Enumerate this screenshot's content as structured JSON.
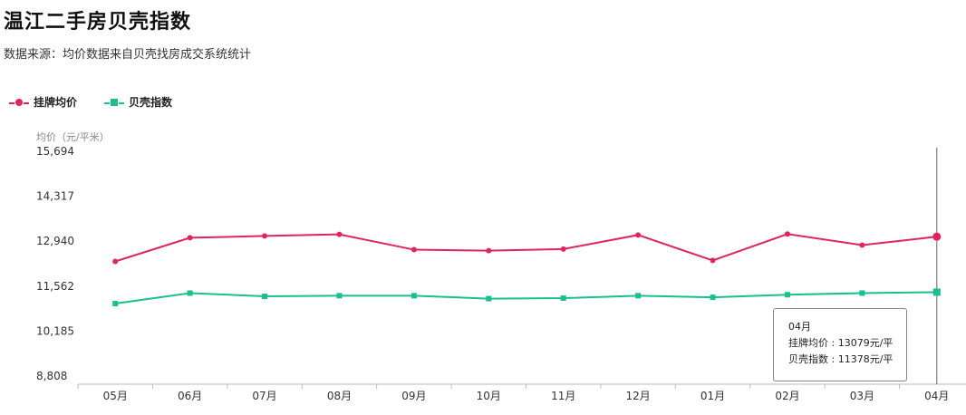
{
  "title": "温江二手房贝壳指数",
  "subtitle": "数据来源：均价数据来自贝壳找房成交系统统计",
  "legend": [
    {
      "name": "挂牌均价",
      "color": "#e0245e",
      "marker": "circle"
    },
    {
      "name": "贝壳指数",
      "color": "#19c08a",
      "marker": "square"
    }
  ],
  "ylabel": "均价（元/平米）",
  "tooltip": {
    "month": "04月",
    "line1": "挂牌均价 : 13079元/平",
    "line2": "贝壳指数 : 11378元/平"
  },
  "chart_data": {
    "type": "line",
    "title": "温江二手房贝壳指数",
    "ylabel": "均价（元/平米）",
    "categories": [
      "05月",
      "06月",
      "07月",
      "08月",
      "09月",
      "10月",
      "11月",
      "12月",
      "01月",
      "02月",
      "03月",
      "04月"
    ],
    "yticks": [
      "8,808",
      "10,185",
      "11,562",
      "12,940",
      "14,317",
      "15,694"
    ],
    "ylim": [
      8808,
      15694
    ],
    "series": [
      {
        "name": "挂牌均价",
        "color": "#e0245e",
        "values": [
          12320,
          13045,
          13100,
          13150,
          12680,
          12650,
          12700,
          13130,
          12350,
          13160,
          12820,
          13079
        ]
      },
      {
        "name": "贝壳指数",
        "color": "#19c08a",
        "values": [
          11030,
          11350,
          11250,
          11270,
          11270,
          11180,
          11195,
          11270,
          11220,
          11300,
          11350,
          11378
        ]
      }
    ],
    "highlight_index": 11,
    "grid": false,
    "legend_position": "top-left"
  }
}
